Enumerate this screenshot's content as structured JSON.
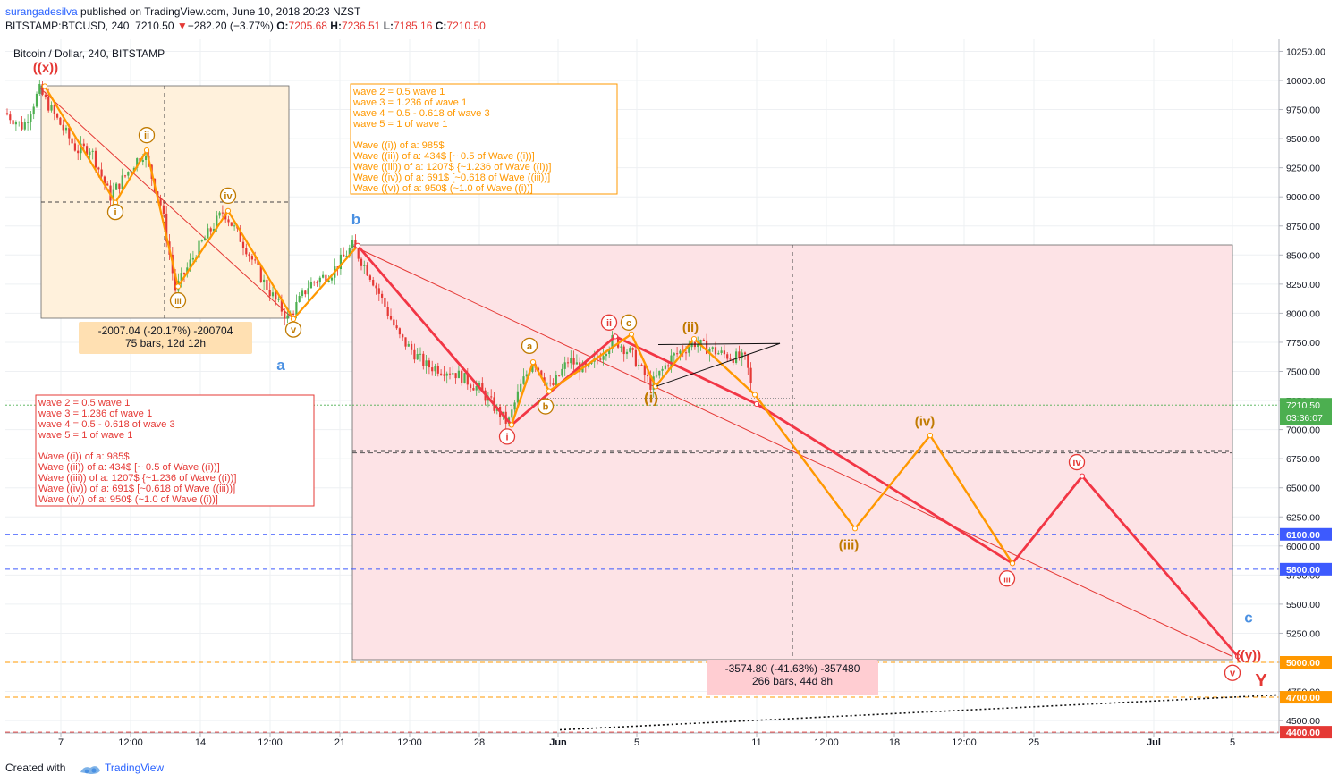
{
  "header": {
    "author": "surangadesilva",
    "published": " published on TradingView.com, June 10, 2018 20:23 NZST",
    "symbol": "BITSTAMP:BTCUSD, 240",
    "last": "7210.50",
    "change": "−282.20 (−3.77%)",
    "open_label": "O:",
    "open": "7205.68",
    "high_label": "H:",
    "high": "7236.51",
    "low_label": "L:",
    "low": "7185.16",
    "close_label": "C:",
    "close": "7210.50"
  },
  "footer": {
    "created_with": "Created with",
    "brand": "TradingView"
  },
  "colors": {
    "up": "#4caf50",
    "down": "#e53935",
    "orange": "#ff9800",
    "red_wave": "#f23645",
    "blue": "#4a90e2",
    "brown": "#c07a00"
  },
  "chart_data": {
    "type": "candlestick",
    "title": "Bitcoin / Dollar, 240, BITSTAMP",
    "ylim": [
      4400,
      10350
    ],
    "x_ticks": [
      "7",
      "12:00",
      "14",
      "12:00",
      "21",
      "12:00",
      "28",
      "Jun",
      "5",
      "11",
      "12:00",
      "18",
      "12:00",
      "25",
      "Jul",
      "5"
    ],
    "y_ticks": [
      4500,
      4750,
      5000,
      5250,
      5500,
      5750,
      6000,
      6250,
      6500,
      6750,
      7000,
      7250,
      7500,
      7750,
      8000,
      8250,
      8500,
      8750,
      9000,
      9250,
      9500,
      9750,
      10000,
      10250
    ],
    "y_tick_labels": [
      "4500.00",
      "4750.00",
      "5000.00",
      "5250.00",
      "5500.00",
      "5750.00",
      "6000.00",
      "6250.00",
      "6500.00",
      "6750.00",
      "7000.00",
      "7250.00",
      "7500.00",
      "7750.00",
      "8000.00",
      "8250.00",
      "8500.00",
      "8750.00",
      "9000.00",
      "9250.00",
      "9500.00",
      "9750.00",
      "10000.00",
      "10250.00"
    ],
    "price_series": [
      [
        0,
        9720
      ],
      [
        20,
        9600
      ],
      [
        38,
        9920
      ],
      [
        55,
        9700
      ],
      [
        80,
        9400
      ],
      [
        95,
        9420
      ],
      [
        117,
        9000
      ],
      [
        145,
        9300
      ],
      [
        155,
        9380
      ],
      [
        175,
        8900
      ],
      [
        190,
        8200
      ],
      [
        215,
        8550
      ],
      [
        244,
        8880
      ],
      [
        270,
        8550
      ],
      [
        290,
        8250
      ],
      [
        316,
        7950
      ],
      [
        340,
        8250
      ],
      [
        365,
        8350
      ],
      [
        388,
        8580
      ],
      [
        410,
        8300
      ],
      [
        440,
        7800
      ],
      [
        470,
        7550
      ],
      [
        500,
        7500
      ],
      [
        530,
        7350
      ],
      [
        562,
        7050
      ],
      [
        575,
        7350
      ],
      [
        590,
        7600
      ],
      [
        610,
        7350
      ],
      [
        630,
        7600
      ],
      [
        650,
        7500
      ],
      [
        680,
        7780
      ],
      [
        700,
        7650
      ],
      [
        722,
        7380
      ],
      [
        745,
        7620
      ],
      [
        770,
        7750
      ],
      [
        800,
        7650
      ],
      [
        828,
        7600
      ],
      [
        838,
        7210
      ]
    ],
    "horizontal_levels": [
      {
        "price": 6100,
        "label": "6100.00",
        "color": "#3d5afe",
        "style": "dashed"
      },
      {
        "price": 5800,
        "label": "5800.00",
        "color": "#3d5afe",
        "style": "dashed"
      },
      {
        "price": 5000,
        "label": "5000.00",
        "color": "#ff9800",
        "style": "dashed"
      },
      {
        "price": 4700,
        "label": "4700.00",
        "color": "#ff9800",
        "style": "dashed"
      },
      {
        "price": 4400,
        "label": "4400.00",
        "color": "#e53935",
        "style": "dashed"
      },
      {
        "price": 6800,
        "label": "",
        "color": "#555555",
        "style": "dashed"
      }
    ],
    "current_price": {
      "label": "7210.50",
      "countdown": "03:36:07"
    },
    "red_wave_path": [
      [
        394,
        8580
      ],
      [
        566,
        7040
      ],
      [
        682,
        7800
      ],
      [
        840,
        7220
      ],
      [
        1126,
        5850
      ],
      [
        1204,
        6600
      ],
      [
        1378,
        5050
      ]
    ],
    "orange_wave_path_1": [
      [
        44,
        9950
      ],
      [
        123,
        8950
      ],
      [
        158,
        9400
      ],
      [
        193,
        8230
      ],
      [
        249,
        8880
      ],
      [
        322,
        7950
      ],
      [
        394,
        8580
      ]
    ],
    "orange_wave_path_2": [
      [
        566,
        7040
      ],
      [
        590,
        7580
      ],
      [
        608,
        7330
      ],
      [
        700,
        7820
      ],
      [
        727,
        7370
      ],
      [
        770,
        7780
      ],
      [
        838,
        7300
      ],
      [
        950,
        6150
      ],
      [
        1034,
        6950
      ],
      [
        1126,
        5850
      ]
    ],
    "triangle": [
      [
        727,
        7370
      ],
      [
        866,
        7740
      ],
      [
        730,
        7730
      ]
    ],
    "wave_labels": [
      {
        "text": "((x))",
        "x": 45,
        "p": 10110,
        "color": "#e53935",
        "style": "plain-bold"
      },
      {
        "text": "ii",
        "x": 158,
        "p": 9530,
        "color": "#c07a00",
        "style": "circle"
      },
      {
        "text": "i",
        "x": 123,
        "p": 8870,
        "color": "#c07a00",
        "style": "circle"
      },
      {
        "text": "iv",
        "x": 249,
        "p": 9010,
        "color": "#c07a00",
        "style": "circle"
      },
      {
        "text": "iii",
        "x": 193,
        "p": 8110,
        "color": "#c07a00",
        "style": "circle"
      },
      {
        "text": "v",
        "x": 322,
        "p": 7860,
        "color": "#c07a00",
        "style": "circle"
      },
      {
        "text": "a",
        "x": 308,
        "p": 7550,
        "color": "#4a90e2",
        "style": "plain-bold"
      },
      {
        "text": "b",
        "x": 392,
        "p": 8800,
        "color": "#4a90e2",
        "style": "plain-bold"
      },
      {
        "text": "a",
        "x": 586,
        "p": 7720,
        "color": "#c07a00",
        "style": "circle"
      },
      {
        "text": "b",
        "x": 604,
        "p": 7200,
        "color": "#c07a00",
        "style": "circle"
      },
      {
        "text": "i",
        "x": 561,
        "p": 6940,
        "color": "#e53935",
        "style": "circle"
      },
      {
        "text": "ii",
        "x": 675,
        "p": 7920,
        "color": "#e53935",
        "style": "circle"
      },
      {
        "text": "c",
        "x": 697,
        "p": 7920,
        "color": "#c07a00",
        "style": "circle"
      },
      {
        "text": "(ii)",
        "x": 766,
        "p": 7880,
        "color": "#c07a00",
        "style": "plain-bold"
      },
      {
        "text": "(i)",
        "x": 722,
        "p": 7270,
        "color": "#c07a00",
        "style": "plain-bold"
      },
      {
        "text": "(iv)",
        "x": 1028,
        "p": 7070,
        "color": "#c07a00",
        "style": "plain-bold"
      },
      {
        "text": "(iii)",
        "x": 943,
        "p": 6010,
        "color": "#c07a00",
        "style": "plain-bold"
      },
      {
        "text": "iv",
        "x": 1198,
        "p": 6720,
        "color": "#e53935",
        "style": "circle"
      },
      {
        "text": "iii",
        "x": 1120,
        "p": 5720,
        "color": "#e53935",
        "style": "circle"
      },
      {
        "text": "c",
        "x": 1390,
        "p": 5380,
        "color": "#4a90e2",
        "style": "plain-bold"
      },
      {
        "text": "((y))",
        "x": 1390,
        "p": 5060,
        "color": "#e53935",
        "style": "plain-bold"
      },
      {
        "text": "v",
        "x": 1372,
        "p": 4910,
        "color": "#e53935",
        "style": "circle"
      },
      {
        "text": "Y",
        "x": 1404,
        "p": 4830,
        "color": "#e53935",
        "style": "big-bold"
      }
    ],
    "annotation_boxes": [
      {
        "id": "orange",
        "border": "#ff9800",
        "text_color": "#ff9800",
        "bg": "#ffffff",
        "lines": [
          "wave 2 = 0.5 wave 1",
          "wave 3 = 1.236 of wave 1",
          "wave 4 = 0.5 - 0.618 of wave 3",
          "wave 5 = 1 of wave 1",
          "",
          "Wave ((i)) of a: 985$",
          "Wave ((ii)) of a: 434$ [~ 0.5 of Wave ((i))]",
          "Wave ((iii)) of a: 1207$ {~1.236 of Wave ((i))]",
          "Wave ((iv)) of a: 691$ [~0.618 of Wave ((iii))]",
          "Wave ((v)) of a: 950$ (~1.0 of Wave ((i))]"
        ]
      },
      {
        "id": "red",
        "border": "#e53935",
        "text_color": "#e53935",
        "bg": "#ffffff",
        "lines": [
          "wave 2 = 0.5 wave 1",
          "wave 3 = 1.236 of wave 1",
          "wave 4 = 0.5 - 0.618 of wave 3",
          "wave 5 = 1 of wave 1",
          "",
          "Wave ((i)) of a: 985$",
          "Wave ((ii)) of a: 434$ [~ 0.5 of Wave ((i))]",
          "Wave ((iii)) of a: 1207$ {~1.236 of Wave ((i))]",
          "Wave ((iv)) of a: 691$ [~0.618 of Wave ((iii))]",
          "Wave ((v)) of a: 950$ (~1.0 of Wave ((i))]"
        ]
      }
    ],
    "measure_labels": [
      {
        "lines": [
          "-2007.04 (-20.17%) -200704",
          "75 bars, 12d 12h"
        ],
        "bg": "#ffe0b2"
      },
      {
        "lines": [
          "-3574.80 (-41.63%) -357480",
          "266 bars, 44d 8h"
        ],
        "bg": "#ffcdd2"
      }
    ]
  }
}
